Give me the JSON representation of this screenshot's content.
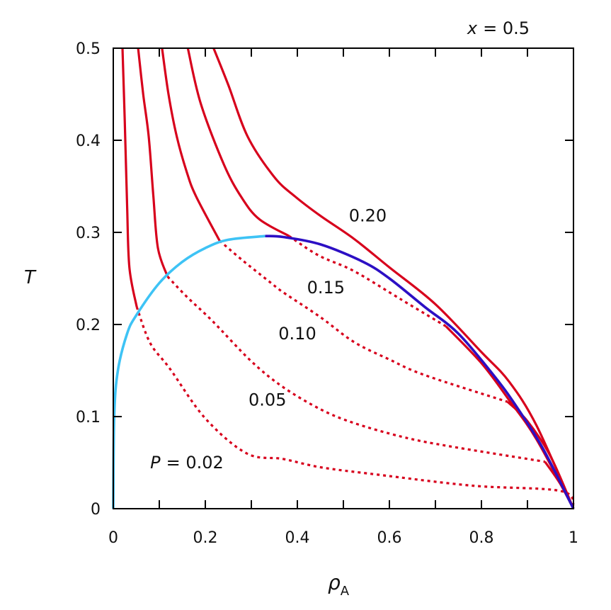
{
  "chart_data": {
    "type": "line",
    "title": "x = 0.5",
    "title_var": "x",
    "title_value": "= 0.5",
    "xlabel": "ρ",
    "xlabel_sub": "A",
    "ylabel": "T",
    "xlim": [
      0,
      1
    ],
    "ylim": [
      0,
      0.5
    ],
    "xticks": [
      0,
      0.1,
      0.2,
      0.3,
      0.4,
      0.5,
      0.6,
      0.7,
      0.8,
      0.9,
      1
    ],
    "xtick_labels": [
      "0",
      "0.2",
      "0.4",
      "0.6",
      "0.8",
      "1"
    ],
    "xtick_label_values": [
      0,
      0.2,
      0.4,
      0.6,
      0.8,
      1
    ],
    "yticks": [
      0,
      0.1,
      0.2,
      0.3,
      0.4,
      0.5
    ],
    "ytick_labels": [
      "0",
      "0.1",
      "0.2",
      "0.3",
      "0.4",
      "0.5"
    ],
    "grid": false,
    "colors": {
      "isobar": "#d7001c",
      "coexistence_low": "#3ec3f5",
      "coexistence_high": "#2c0fc4",
      "axis": "#000000"
    },
    "coexistence": {
      "low_branch": [
        [
          0,
          0
        ],
        [
          0.002,
          0.1
        ],
        [
          0.01,
          0.15
        ],
        [
          0.03,
          0.19
        ],
        [
          0.05,
          0.21
        ],
        [
          0.1,
          0.245
        ],
        [
          0.15,
          0.268
        ],
        [
          0.2,
          0.283
        ],
        [
          0.25,
          0.292
        ],
        [
          0.33,
          0.296
        ]
      ],
      "high_branch": [
        [
          0.33,
          0.296
        ],
        [
          0.369,
          0.295
        ],
        [
          0.45,
          0.287
        ],
        [
          0.543,
          0.268
        ],
        [
          0.6,
          0.25
        ],
        [
          0.677,
          0.219
        ],
        [
          0.75,
          0.19
        ],
        [
          0.831,
          0.142
        ],
        [
          0.88,
          0.108
        ],
        [
          0.934,
          0.065
        ],
        [
          1,
          0
        ]
      ]
    },
    "series": [
      {
        "name": "0.02",
        "label": "P = 0.02",
        "label_var": "P",
        "label_value": "= 0.02",
        "label_at": [
          0.16,
          0.05
        ],
        "solid": [
          [
            0.02,
            0.5
          ],
          [
            0.025,
            0.42
          ],
          [
            0.03,
            0.33
          ],
          [
            0.035,
            0.262
          ],
          [
            0.051,
            0.219
          ]
        ],
        "dotted": [
          [
            0.051,
            0.219
          ],
          [
            0.08,
            0.18
          ],
          [
            0.123,
            0.152
          ],
          [
            0.2,
            0.098
          ],
          [
            0.29,
            0.06
          ],
          [
            0.369,
            0.054
          ],
          [
            0.45,
            0.045
          ],
          [
            0.574,
            0.037
          ],
          [
            0.78,
            0.025
          ],
          [
            0.974,
            0.019
          ],
          [
            1,
            0
          ]
        ]
      },
      {
        "name": "0.05",
        "label": "0.05",
        "label_at": [
          0.335,
          0.118
        ],
        "solid": [
          [
            0.054,
            0.5
          ],
          [
            0.065,
            0.45
          ],
          [
            0.077,
            0.404
          ],
          [
            0.087,
            0.34
          ],
          [
            0.097,
            0.283
          ],
          [
            0.118,
            0.252
          ]
        ],
        "dotted": [
          [
            0.118,
            0.252
          ],
          [
            0.16,
            0.23
          ],
          [
            0.215,
            0.204
          ],
          [
            0.3,
            0.16
          ],
          [
            0.369,
            0.132
          ],
          [
            0.45,
            0.108
          ],
          [
            0.523,
            0.093
          ],
          [
            0.628,
            0.078
          ],
          [
            0.728,
            0.068
          ],
          [
            0.938,
            0.051
          ]
        ],
        "solid_tail": [
          [
            0.938,
            0.051
          ],
          [
            0.97,
            0.028
          ],
          [
            1,
            0
          ]
        ]
      },
      {
        "name": "0.10",
        "label": "0.10",
        "label_at": [
          0.4,
          0.19
        ],
        "solid": [
          [
            0.106,
            0.5
          ],
          [
            0.12,
            0.45
          ],
          [
            0.138,
            0.404
          ],
          [
            0.16,
            0.365
          ],
          [
            0.18,
            0.339
          ],
          [
            0.231,
            0.291
          ]
        ],
        "dotted": [
          [
            0.231,
            0.291
          ],
          [
            0.28,
            0.27
          ],
          [
            0.343,
            0.245
          ],
          [
            0.369,
            0.235
          ],
          [
            0.45,
            0.208
          ],
          [
            0.523,
            0.181
          ],
          [
            0.6,
            0.162
          ],
          [
            0.677,
            0.145
          ],
          [
            0.857,
            0.116
          ]
        ],
        "solid_tail": [
          [
            0.857,
            0.116
          ],
          [
            0.9,
            0.095
          ],
          [
            0.95,
            0.057
          ],
          [
            1,
            0
          ]
        ]
      },
      {
        "name": "0.15",
        "label": "0.15",
        "label_at": [
          0.462,
          0.24
        ],
        "solid": [
          [
            0.162,
            0.5
          ],
          [
            0.19,
            0.44
          ],
          [
            0.241,
            0.373
          ],
          [
            0.28,
            0.337
          ],
          [
            0.318,
            0.314
          ],
          [
            0.382,
            0.296
          ]
        ],
        "dotted": [
          [
            0.382,
            0.296
          ],
          [
            0.446,
            0.275
          ],
          [
            0.523,
            0.258
          ],
          [
            0.626,
            0.227
          ],
          [
            0.723,
            0.198
          ]
        ],
        "solid_tail": [
          [
            0.723,
            0.198
          ],
          [
            0.8,
            0.158
          ],
          [
            0.86,
            0.118
          ],
          [
            0.92,
            0.075
          ],
          [
            1,
            0
          ]
        ]
      },
      {
        "name": "0.20",
        "label": "0.20",
        "label_at": [
          0.553,
          0.318
        ],
        "solid": [
          [
            0.218,
            0.5
          ],
          [
            0.25,
            0.46
          ],
          [
            0.292,
            0.404
          ],
          [
            0.35,
            0.36
          ],
          [
            0.395,
            0.339
          ],
          [
            0.45,
            0.318
          ],
          [
            0.523,
            0.293
          ],
          [
            0.6,
            0.262
          ],
          [
            0.7,
            0.222
          ],
          [
            0.8,
            0.17
          ],
          [
            0.86,
            0.138
          ],
          [
            0.92,
            0.09
          ],
          [
            1,
            0
          ]
        ],
        "dotted": []
      }
    ]
  }
}
